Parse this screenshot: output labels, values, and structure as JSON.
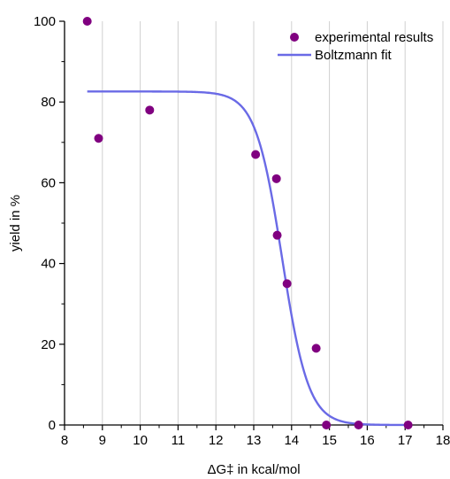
{
  "chart_data": {
    "type": "scatter",
    "xlabel": "ΔG‡ in kcal/mol",
    "ylabel": "yield in %",
    "xlim": [
      8,
      18
    ],
    "ylim": [
      0,
      100
    ],
    "x_ticks": [
      8,
      9,
      10,
      11,
      12,
      13,
      14,
      15,
      16,
      17,
      18
    ],
    "y_ticks": [
      0,
      20,
      40,
      60,
      80,
      100
    ],
    "grid": "vertical",
    "legend_position": "top-right",
    "series": [
      {
        "name": "experimental results",
        "kind": "scatter",
        "color": "#800080",
        "points": [
          {
            "x": 8.6,
            "y": 100
          },
          {
            "x": 8.9,
            "y": 71
          },
          {
            "x": 10.25,
            "y": 78
          },
          {
            "x": 13.05,
            "y": 67
          },
          {
            "x": 13.6,
            "y": 61
          },
          {
            "x": 13.62,
            "y": 47
          },
          {
            "x": 13.88,
            "y": 35
          },
          {
            "x": 14.65,
            "y": 19
          },
          {
            "x": 14.92,
            "y": 0
          },
          {
            "x": 15.77,
            "y": 0
          },
          {
            "x": 17.08,
            "y": 0
          }
        ]
      },
      {
        "name": "Boltzmann fit",
        "kind": "line",
        "color": "#6a6ae6",
        "model": {
          "A1": 82.6,
          "A2": 0,
          "x0": 13.75,
          "dx": 0.35
        },
        "x_range": [
          8.6,
          17.08
        ]
      }
    ]
  }
}
